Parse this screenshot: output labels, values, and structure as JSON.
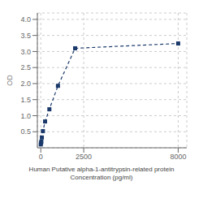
{
  "chart_data": {
    "type": "line",
    "x": [
      0,
      15.625,
      31.25,
      62.5,
      125,
      250,
      500,
      1000,
      2000,
      8000
    ],
    "values": [
      0.105,
      0.145,
      0.19,
      0.32,
      0.52,
      0.82,
      1.2,
      1.93,
      3.1,
      3.25
    ],
    "xlabel": "Human Putative alpha-1-antitrypsin-related protein\nConcentration (pg/ml)",
    "ylabel": "OD",
    "xlim": [
      -200,
      8500
    ],
    "ylim": [
      0,
      4.2
    ],
    "xticks": [
      0,
      2500,
      8000
    ],
    "yticks": [
      0.5,
      {
        "value": 1.0,
        "label": "1.0"
      },
      1.5,
      {
        "value": 2.0,
        "label": "2.0"
      },
      2.5,
      {
        "value": 3.0,
        "label": "3.0"
      },
      3.5,
      {
        "value": 4.0,
        "label": "4.0"
      }
    ],
    "color": "#1b3a6b",
    "marker": "square",
    "line_style": "dashed",
    "grid": true
  }
}
